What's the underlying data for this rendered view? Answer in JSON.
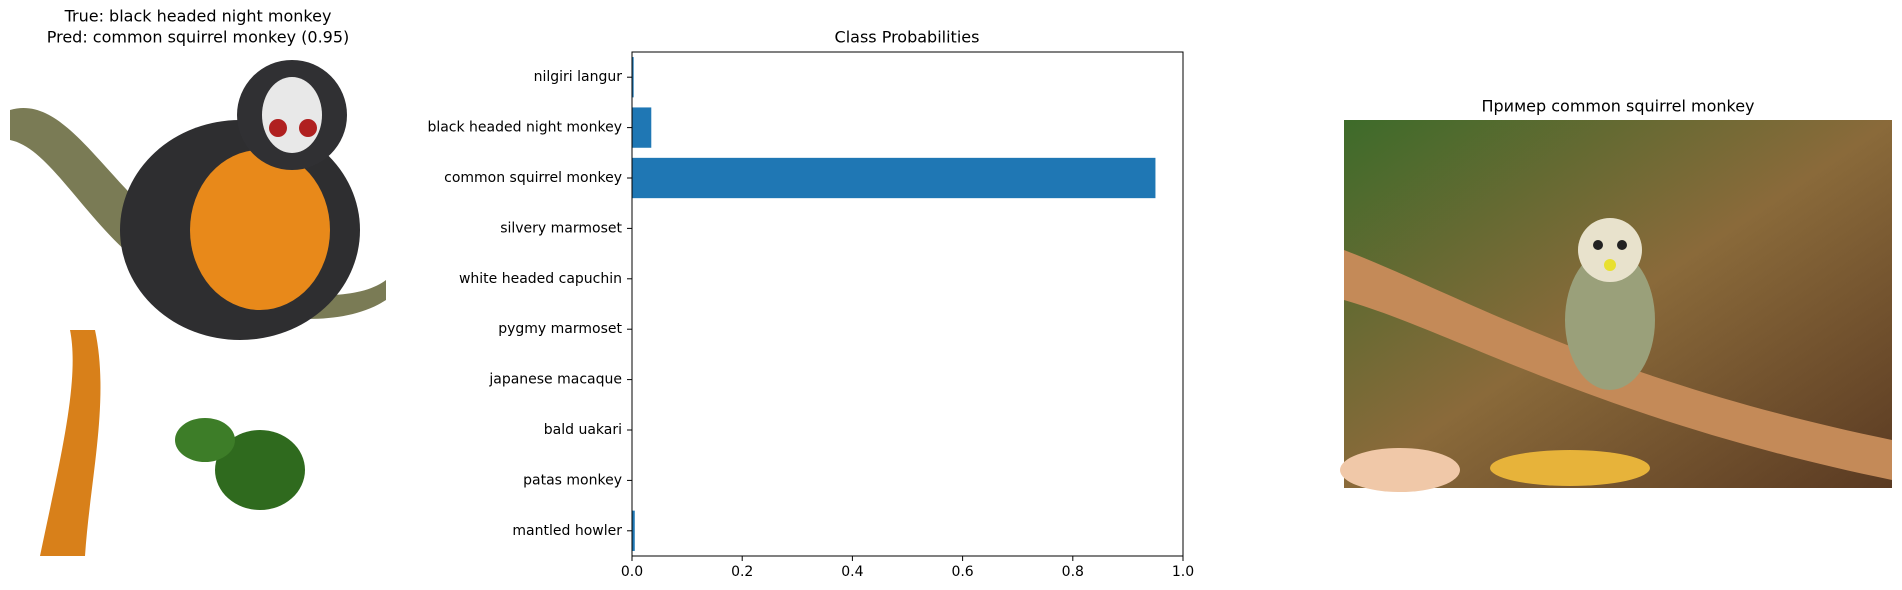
{
  "left_panel": {
    "title_lines": [
      "True: black headed night monkey",
      "Pred: common squirrel monkey (0.95)"
    ]
  },
  "chart_data": {
    "type": "barh",
    "title": "Class Probabilities",
    "categories": [
      "nilgiri langur",
      "black headed night monkey",
      "common squirrel monkey",
      "silvery marmoset",
      "white headed capuchin",
      "pygmy marmoset",
      "japanese macaque",
      "bald uakari",
      "patas monkey",
      "mantled howler"
    ],
    "values": [
      0.003,
      0.035,
      0.95,
      0.0005,
      0.0005,
      0.0005,
      0.0005,
      0.0005,
      0.0005,
      0.005
    ],
    "color": "#1f77b4",
    "xlim": [
      0,
      1
    ],
    "xticks": [
      {
        "value": 0,
        "label": "0.0"
      },
      0.2,
      0.4,
      0.6,
      0.8,
      {
        "value": 1,
        "label": "1.0"
      }
    ]
  },
  "right_panel": {
    "title": "Пример common squirrel monkey"
  }
}
